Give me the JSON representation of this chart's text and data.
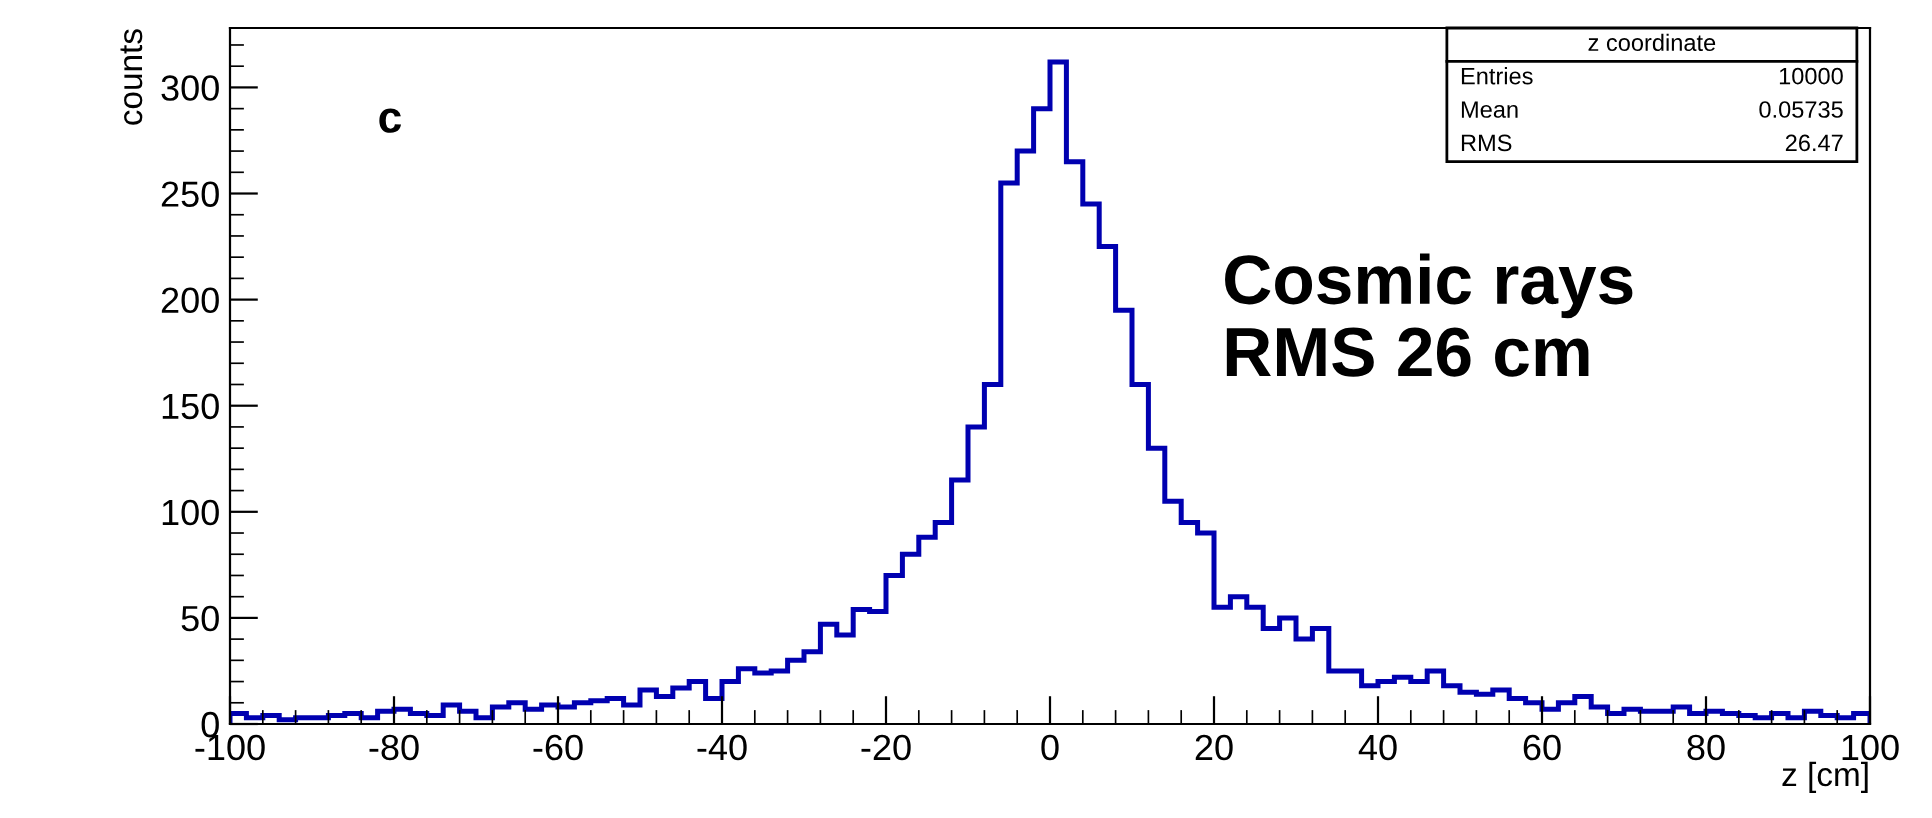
{
  "chart_data": {
    "type": "histogram",
    "xlabel": "z [cm]",
    "ylabel": "counts",
    "annotations": [
      "c",
      "Cosmic rays\nRMS 26 cm",
      "z coordinate",
      "Entries",
      "10000",
      "Mean",
      "0.05735",
      "RMS",
      "26.47"
    ],
    "bins": [
      -100,
      -98,
      -96,
      -94,
      -92,
      -90,
      -88,
      -86,
      -84,
      -82,
      -80,
      -78,
      -76,
      -74,
      -72,
      -70,
      -68,
      -66,
      -64,
      -62,
      -60,
      -58,
      -56,
      -54,
      -52,
      -50,
      -48,
      -46,
      -44,
      -42,
      -40,
      -38,
      -36,
      -34,
      -32,
      -30,
      -28,
      -26,
      -24,
      -22,
      -20,
      -18,
      -16,
      -14,
      -12,
      -10,
      -8,
      -6,
      -4,
      -2,
      0,
      2,
      4,
      6,
      8,
      10,
      12,
      14,
      16,
      18,
      20,
      22,
      24,
      26,
      28,
      30,
      32,
      34,
      36,
      38,
      40,
      42,
      44,
      46,
      48,
      50,
      52,
      54,
      56,
      58,
      60,
      62,
      64,
      66,
      68,
      70,
      72,
      74,
      76,
      78,
      80,
      82,
      84,
      86,
      88,
      90,
      92,
      94,
      96,
      98,
      100
    ],
    "values": [
      5,
      3,
      4,
      2,
      3,
      3,
      4,
      5,
      3,
      6,
      7,
      5,
      4,
      9,
      6,
      3,
      8,
      10,
      7,
      9,
      8,
      10,
      11,
      12,
      9,
      16,
      13,
      17,
      20,
      12,
      20,
      26,
      24,
      25,
      30,
      34,
      47,
      42,
      54,
      53,
      70,
      80,
      88,
      95,
      115,
      140,
      160,
      255,
      270,
      290,
      312,
      265,
      245,
      225,
      195,
      160,
      130,
      105,
      95,
      90,
      55,
      60,
      55,
      45,
      50,
      40,
      45,
      25,
      25,
      18,
      20,
      22,
      20,
      25,
      18,
      15,
      14,
      16,
      12,
      10,
      7,
      10,
      13,
      8,
      5,
      7,
      6,
      6,
      8,
      5,
      6,
      5,
      4,
      3,
      5,
      3,
      6,
      4,
      3,
      5
    ],
    "color": "#0000b0",
    "xlim": [
      -100,
      100
    ],
    "ylim": [
      0,
      328
    ],
    "xticks": [
      -100,
      -80,
      -60,
      -40,
      -20,
      0,
      20,
      40,
      60,
      80,
      100
    ],
    "yticks": [
      0,
      50,
      100,
      150,
      200,
      250,
      300
    ],
    "grid": false,
    "legend": false
  }
}
